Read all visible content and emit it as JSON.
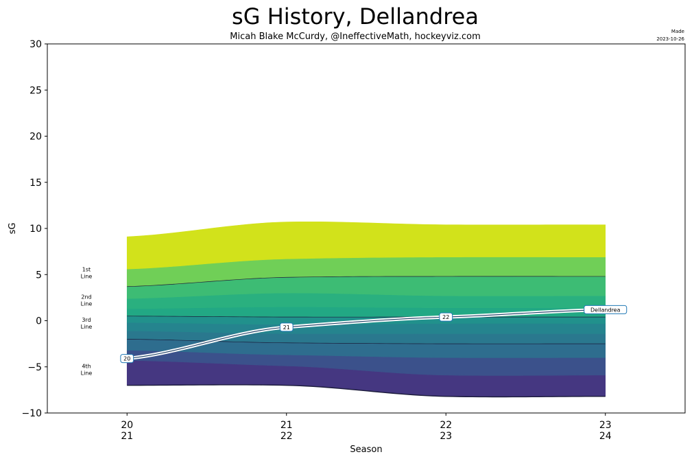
{
  "chart_data": {
    "type": "area",
    "title": "sG History, Dellandrea",
    "subtitle": "Micah Blake McCurdy, @IneffectiveMath, hockeyviz.com",
    "made_label": "Made",
    "made_date": "2023-10-26",
    "xlabel": "Season",
    "ylabel": "sG",
    "ylim": [
      -10,
      30
    ],
    "xlim": [
      -0.5,
      3.5
    ],
    "yticks": [
      -10,
      -5,
      0,
      5,
      10,
      15,
      20,
      25,
      30
    ],
    "y_tick_labels": [
      "−10",
      "−5",
      "0",
      "5",
      "10",
      "15",
      "20",
      "25",
      "30"
    ],
    "x_tick_labels": [
      {
        "top": "20",
        "bottom": "21"
      },
      {
        "top": "21",
        "bottom": "22"
      },
      {
        "top": "22",
        "bottom": "23"
      },
      {
        "top": "23",
        "bottom": "24"
      }
    ],
    "band_x": [
      0,
      1,
      2,
      3
    ],
    "band_boundaries": [
      {
        "values": [
          -7.0,
          -7.0,
          -8.2,
          -8.2
        ],
        "line": true
      },
      {
        "values": [
          -4.3,
          -4.9,
          -5.9,
          -5.9
        ],
        "line": false
      },
      {
        "values": [
          -3.2,
          -3.7,
          -4.0,
          -4.0
        ],
        "line": false
      },
      {
        "values": [
          -2.0,
          -2.4,
          -2.5,
          -2.5
        ],
        "line": true
      },
      {
        "values": [
          -1.1,
          -1.4,
          -1.4,
          -1.4
        ],
        "line": false
      },
      {
        "values": [
          -0.2,
          -0.4,
          -0.3,
          -0.3
        ],
        "line": false
      },
      {
        "values": [
          0.5,
          0.4,
          0.4,
          0.4
        ],
        "line": true
      },
      {
        "values": [
          1.3,
          1.5,
          1.4,
          1.4
        ],
        "line": false
      },
      {
        "values": [
          2.4,
          3.0,
          2.7,
          2.7
        ],
        "line": false
      },
      {
        "values": [
          3.7,
          4.7,
          4.8,
          4.8
        ],
        "line": true
      },
      {
        "values": [
          5.6,
          6.7,
          6.9,
          6.9
        ],
        "line": false
      },
      {
        "values": [
          9.1,
          10.7,
          10.4,
          10.4
        ],
        "line": true
      }
    ],
    "band_colors": [
      "#453781",
      "#3b518b",
      "#2e6d8e",
      "#2a788e",
      "#25848e",
      "#21918c",
      "#22a884",
      "#2ab07f",
      "#3dbc74",
      "#70cf57",
      "#d2e21b"
    ],
    "line_labels": [
      {
        "line1": "1st",
        "line2": "Line",
        "y": 5.0
      },
      {
        "line1": "2nd",
        "line2": "Line",
        "y": 2.0
      },
      {
        "line1": "3rd",
        "line2": "Line",
        "y": -0.5
      },
      {
        "line1": "4th",
        "line2": "Line",
        "y": -5.5
      }
    ],
    "series": [
      {
        "name": "Dellandrea",
        "x": [
          0,
          1,
          2,
          3
        ],
        "values": [
          -4.1,
          -0.7,
          0.4,
          1.2
        ],
        "point_labels": [
          "20",
          "21",
          "22",
          "Dellandrea"
        ],
        "color": "#1f77b4"
      }
    ],
    "grid": false
  }
}
